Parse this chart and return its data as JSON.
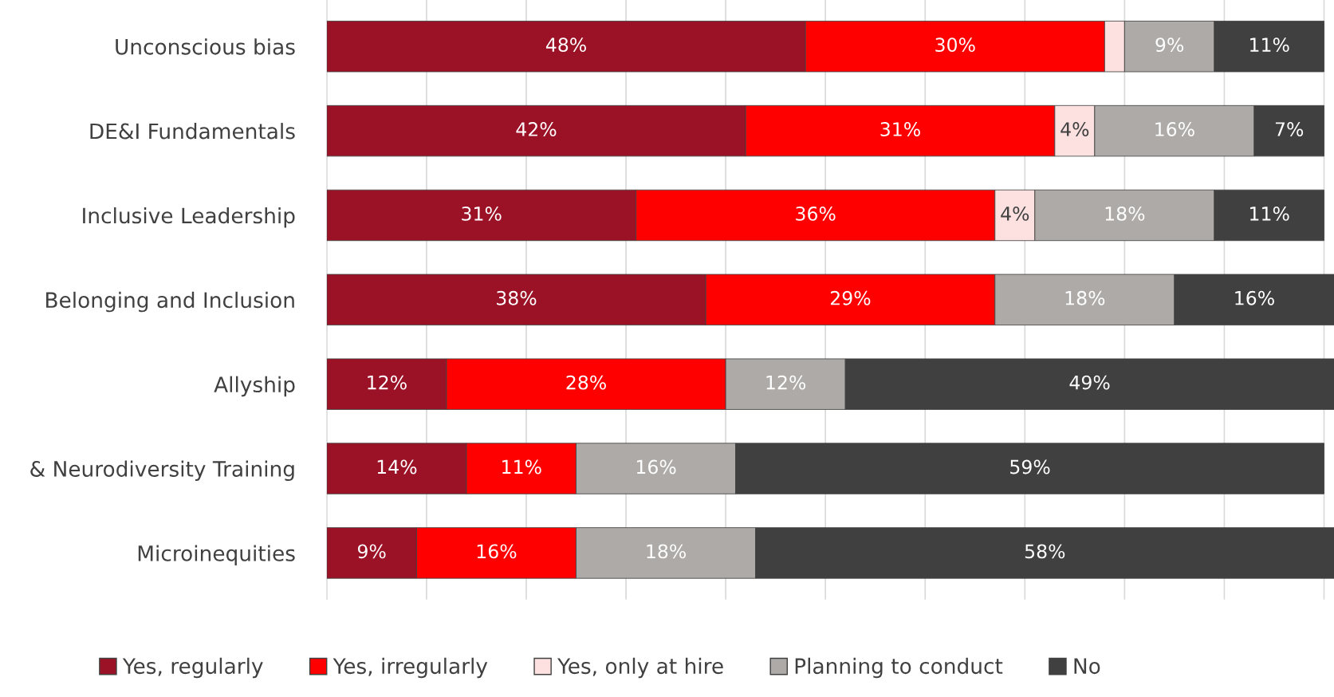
{
  "chart_data": {
    "type": "bar",
    "orientation": "horizontal",
    "stacked": true,
    "categories": [
      "Unconscious bias",
      "DE&I Fundamentals",
      "Inclusive Leadership",
      "Belonging and Inclusion",
      "Allyship",
      "& Neurodiversity Training",
      "Microinequities"
    ],
    "series": [
      {
        "name": "Yes, regularly",
        "color": "#9b1126",
        "values": [
          48,
          42,
          31,
          38,
          12,
          14,
          9
        ],
        "value_labels": [
          "48%",
          "42%",
          "31%",
          "38%",
          "12%",
          "14%",
          "9%"
        ]
      },
      {
        "name": "Yes, irregularly",
        "color": "#ff0000",
        "values": [
          30,
          31,
          36,
          29,
          28,
          11,
          16
        ],
        "value_labels": [
          "30%",
          "31%",
          "36%",
          "29%",
          "28%",
          "11%",
          "16%"
        ]
      },
      {
        "name": "Yes, only at hire",
        "color": "#fde0e0",
        "values": [
          2,
          4,
          4,
          null,
          null,
          null,
          null
        ],
        "value_labels": [
          null,
          "4%",
          "4%",
          null,
          null,
          null,
          null
        ]
      },
      {
        "name": "Planning to conduct",
        "color": "#aeaaa7",
        "values": [
          9,
          16,
          18,
          18,
          12,
          16,
          18
        ],
        "value_labels": [
          "9%",
          "16%",
          "18%",
          "18%",
          "12%",
          "16%",
          "18%"
        ]
      },
      {
        "name": "No",
        "color": "#404040",
        "values": [
          11,
          7,
          11,
          16,
          49,
          59,
          58
        ],
        "value_labels": [
          "11%",
          "7%",
          "11%",
          "16%",
          "49%",
          "59%",
          "58%"
        ]
      }
    ],
    "xlim": [
      0,
      101
    ],
    "xticks": [
      {
        "value": 0,
        "label": null
      },
      {
        "value": 10,
        "label": null
      },
      {
        "value": 20,
        "label": null
      },
      {
        "value": 30,
        "label": null
      },
      {
        "value": 40,
        "label": null
      },
      {
        "value": 50,
        "label": null
      },
      {
        "value": 60,
        "label": null
      },
      {
        "value": 70,
        "label": null
      },
      {
        "value": 80,
        "label": null
      },
      {
        "value": 90,
        "label": null
      },
      {
        "value": 100,
        "label": null
      }
    ],
    "tick_labels": "y",
    "grid": "x",
    "legend": "bottom"
  }
}
